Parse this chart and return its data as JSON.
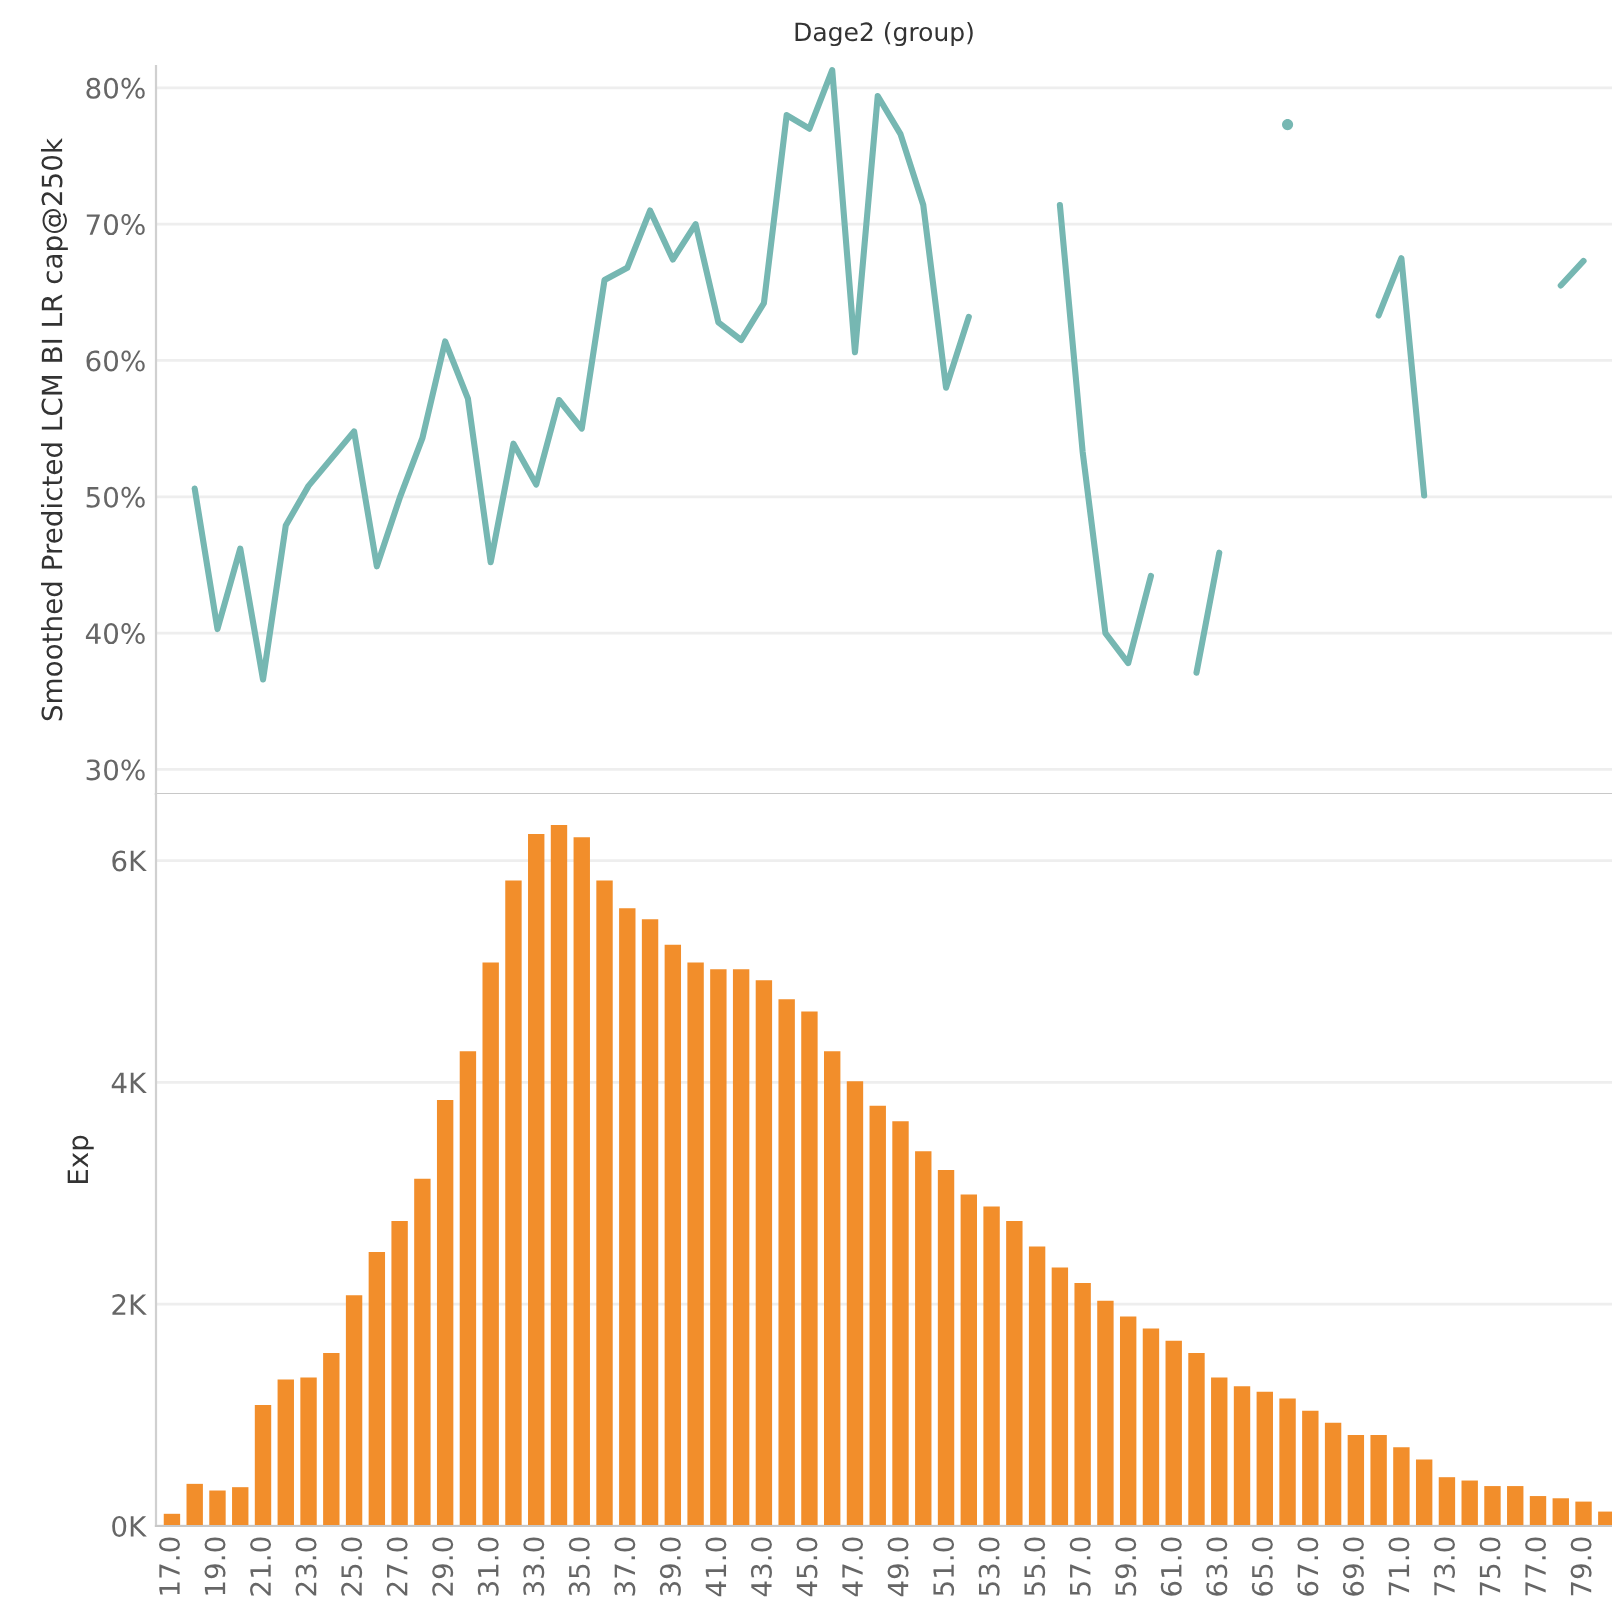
{
  "chart_data": [
    {
      "type": "line",
      "title": "Dage2 (group)",
      "ylabel": "Smoothed Predicted LCM BI LR cap@250k",
      "categories": [
        "17.0",
        null,
        "19.0",
        null,
        "21.0",
        null,
        "23.0",
        null,
        "25.0",
        null,
        "27.0",
        null,
        "29.0",
        null,
        "31.0",
        null,
        "33.0",
        null,
        "35.0",
        null,
        "37.0",
        null,
        "39.0",
        null,
        "41.0",
        null,
        "43.0",
        null,
        "45.0",
        null,
        "47.0",
        null,
        "49.0",
        null,
        "51.0",
        null,
        "53.0",
        null,
        "55.0",
        null,
        "57.0",
        null,
        "59.0",
        null,
        "61.0",
        null,
        "63.0",
        null,
        "65.0",
        null,
        "67.0",
        null,
        "69.0",
        null,
        "71.0",
        null,
        "73.0",
        null,
        "75.0",
        null,
        "77.0",
        null,
        "79.0",
        null
      ],
      "series": [
        {
          "color": "#76b7b2",
          "values": [
            null,
            50.6,
            40.3,
            46.2,
            36.6,
            47.9,
            50.8,
            52.8,
            54.8,
            44.9,
            49.9,
            54.3,
            61.4,
            57.2,
            45.2,
            53.9,
            50.9,
            57.1,
            55.0,
            65.9,
            66.8,
            71.0,
            67.4,
            70.0,
            62.8,
            61.5,
            64.2,
            78.0,
            77.0,
            81.3,
            60.6,
            79.4,
            76.6,
            71.4,
            58.0,
            63.2,
            null,
            null,
            null,
            71.4,
            53.3,
            40.0,
            37.8,
            44.2,
            null,
            37.1,
            45.9,
            null,
            null,
            77.3,
            null,
            null,
            null,
            63.3,
            67.5,
            50.1,
            null,
            null,
            null,
            null,
            null,
            65.5,
            67.3,
            null
          ]
        }
      ],
      "ylim": [
        28.2,
        81.6
      ],
      "yticks": [
        {
          "value": 30,
          "label": "30%"
        },
        {
          "value": 40,
          "label": "40%"
        },
        {
          "value": 50,
          "label": "50%"
        },
        {
          "value": 60,
          "label": "60%"
        },
        {
          "value": 70,
          "label": "70%"
        },
        {
          "value": 80,
          "label": "80%"
        }
      ],
      "grid": "y",
      "tick_labels": "y"
    },
    {
      "type": "bar",
      "ylabel": "Exp",
      "categories": [
        "17.0",
        null,
        "19.0",
        null,
        "21.0",
        null,
        "23.0",
        null,
        "25.0",
        null,
        "27.0",
        null,
        "29.0",
        null,
        "31.0",
        null,
        "33.0",
        null,
        "35.0",
        null,
        "37.0",
        null,
        "39.0",
        null,
        "41.0",
        null,
        "43.0",
        null,
        "45.0",
        null,
        "47.0",
        null,
        "49.0",
        null,
        "51.0",
        null,
        "53.0",
        null,
        "55.0",
        null,
        "57.0",
        null,
        "59.0",
        null,
        "61.0",
        null,
        "63.0",
        null,
        "65.0",
        null,
        "67.0",
        null,
        "69.0",
        null,
        "71.0",
        null,
        "73.0",
        null,
        "75.0",
        null,
        "77.0",
        null,
        "79.0",
        null
      ],
      "series": [
        {
          "color": "#f28e2b",
          "values": [
            110,
            380,
            320,
            350,
            1090,
            1320,
            1340,
            1560,
            2080,
            2470,
            2750,
            3130,
            3840,
            4280,
            5080,
            5820,
            6240,
            6320,
            6210,
            5820,
            5570,
            5470,
            5240,
            5080,
            5020,
            5020,
            4920,
            4750,
            4640,
            4280,
            4010,
            3790,
            3650,
            3380,
            3210,
            2990,
            2880,
            2750,
            2520,
            2330,
            2190,
            2030,
            1890,
            1780,
            1670,
            1560,
            1340,
            1260,
            1210,
            1150,
            1040,
            930,
            820,
            820,
            710,
            600,
            440,
            410,
            360,
            360,
            270,
            250,
            220,
            130
          ]
        }
      ],
      "ylim": [
        0,
        6600
      ],
      "yticks": [
        {
          "value": 0,
          "label": "0K"
        },
        {
          "value": 2000,
          "label": "2K"
        },
        {
          "value": 4000,
          "label": "4K"
        },
        {
          "value": 6000,
          "label": "6K"
        }
      ],
      "grid": "y"
    }
  ]
}
